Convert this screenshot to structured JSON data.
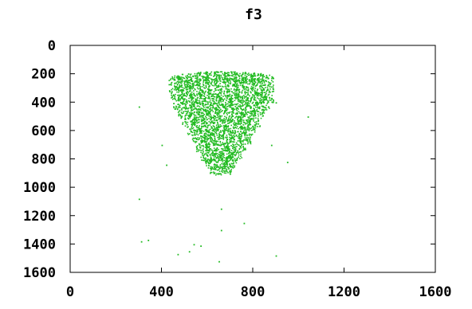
{
  "chart_data": {
    "type": "scatter",
    "title": "f3",
    "xlabel": "",
    "ylabel": "",
    "xlim": [
      0,
      1600
    ],
    "ylim": [
      1600,
      0
    ],
    "y_axis_inverted": true,
    "x_ticks": [
      "0",
      "400",
      "800",
      "1200",
      "1600"
    ],
    "y_ticks": [
      "0",
      "200",
      "400",
      "600",
      "800",
      "1000",
      "1200",
      "1400",
      "1600"
    ],
    "grid": false,
    "legend": "none",
    "point_color": "#22bb22",
    "series": [
      {
        "points_description_cluster": [
          [
            460,
            240
          ],
          [
            500,
            230
          ],
          [
            540,
            220
          ],
          [
            580,
            215
          ],
          [
            620,
            210
          ],
          [
            660,
            210
          ],
          [
            700,
            212
          ],
          [
            740,
            215
          ],
          [
            780,
            220
          ],
          [
            820,
            225
          ],
          [
            860,
            235
          ],
          [
            460,
            300
          ],
          [
            500,
            290
          ],
          [
            540,
            280
          ],
          [
            580,
            270
          ],
          [
            620,
            265
          ],
          [
            660,
            260
          ],
          [
            700,
            262
          ],
          [
            740,
            268
          ],
          [
            780,
            275
          ],
          [
            820,
            285
          ],
          [
            860,
            300
          ],
          [
            470,
            360
          ],
          [
            510,
            350
          ],
          [
            550,
            340
          ],
          [
            590,
            335
          ],
          [
            630,
            330
          ],
          [
            670,
            328
          ],
          [
            710,
            330
          ],
          [
            750,
            338
          ],
          [
            790,
            345
          ],
          [
            830,
            355
          ],
          [
            860,
            370
          ],
          [
            480,
            420
          ],
          [
            520,
            410
          ],
          [
            560,
            400
          ],
          [
            600,
            395
          ],
          [
            640,
            392
          ],
          [
            680,
            390
          ],
          [
            720,
            392
          ],
          [
            760,
            400
          ],
          [
            800,
            410
          ],
          [
            840,
            420
          ],
          [
            500,
            480
          ],
          [
            540,
            470
          ],
          [
            580,
            460
          ],
          [
            620,
            455
          ],
          [
            660,
            452
          ],
          [
            700,
            455
          ],
          [
            740,
            462
          ],
          [
            780,
            470
          ],
          [
            820,
            480
          ],
          [
            520,
            540
          ],
          [
            560,
            530
          ],
          [
            600,
            522
          ],
          [
            640,
            518
          ],
          [
            680,
            518
          ],
          [
            720,
            522
          ],
          [
            760,
            530
          ],
          [
            800,
            540
          ],
          [
            540,
            600
          ],
          [
            580,
            590
          ],
          [
            620,
            585
          ],
          [
            660,
            582
          ],
          [
            700,
            585
          ],
          [
            740,
            592
          ],
          [
            780,
            600
          ],
          [
            560,
            660
          ],
          [
            600,
            650
          ],
          [
            640,
            645
          ],
          [
            680,
            645
          ],
          [
            720,
            650
          ],
          [
            760,
            660
          ],
          [
            580,
            720
          ],
          [
            620,
            712
          ],
          [
            660,
            708
          ],
          [
            700,
            712
          ],
          [
            740,
            720
          ],
          [
            600,
            780
          ],
          [
            640,
            772
          ],
          [
            680,
            772
          ],
          [
            720,
            780
          ],
          [
            620,
            830
          ],
          [
            660,
            825
          ],
          [
            700,
            830
          ],
          [
            640,
            880
          ],
          [
            680,
            875
          ]
        ],
        "outliers": [
          [
            300,
            1080
          ],
          [
            310,
            1380
          ],
          [
            340,
            1370
          ],
          [
            540,
            1400
          ],
          [
            570,
            1410
          ],
          [
            470,
            1470
          ],
          [
            520,
            1450
          ],
          [
            660,
            1150
          ],
          [
            660,
            1300
          ],
          [
            650,
            1520
          ],
          [
            900,
            1480
          ],
          [
            760,
            1250
          ],
          [
            1040,
            500
          ],
          [
            900,
            400
          ],
          [
            300,
            430
          ],
          [
            420,
            840
          ],
          [
            950,
            820
          ],
          [
            400,
            700
          ],
          [
            880,
            700
          ]
        ]
      }
    ]
  }
}
